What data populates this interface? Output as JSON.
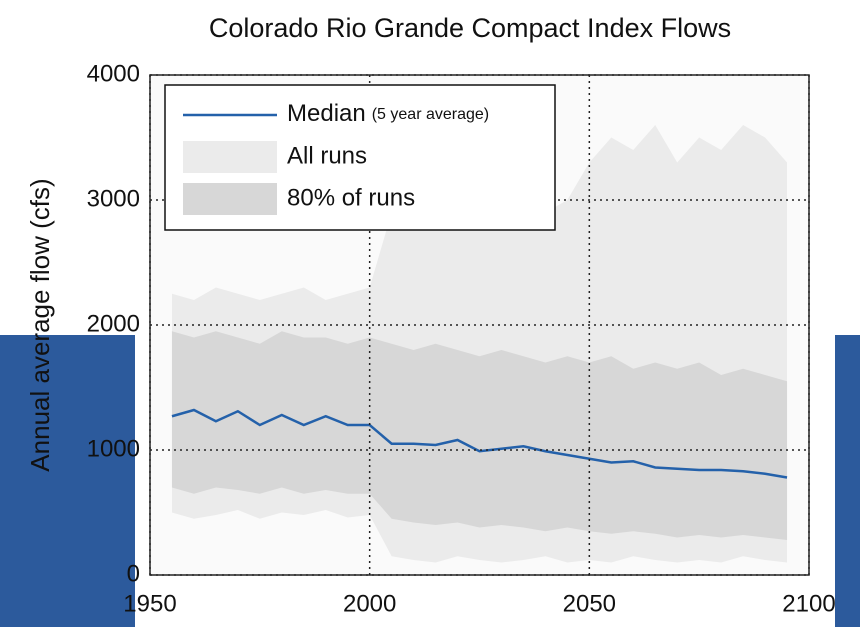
{
  "chart_data": {
    "type": "band-line",
    "title": "Colorado Rio Grande Compact Index Flows",
    "ylabel": "Annual average flow (cfs)",
    "x": [
      1955,
      1960,
      1965,
      1970,
      1975,
      1980,
      1985,
      1990,
      1995,
      2000,
      2005,
      2010,
      2015,
      2020,
      2025,
      2030,
      2035,
      2040,
      2045,
      2050,
      2055,
      2060,
      2065,
      2070,
      2075,
      2080,
      2085,
      2090,
      2095
    ],
    "series": [
      {
        "name": "Median",
        "note": "(5 year average)",
        "color": "#2461aa",
        "values": [
          1270,
          1320,
          1230,
          1310,
          1200,
          1280,
          1200,
          1270,
          1200,
          1200,
          1050,
          1050,
          1040,
          1080,
          990,
          1010,
          1030,
          990,
          960,
          930,
          900,
          910,
          860,
          850,
          840,
          840,
          830,
          810,
          780
        ]
      }
    ],
    "bands": [
      {
        "name": "All runs",
        "color": "#ebebeb",
        "upper": [
          2250,
          2200,
          2300,
          2250,
          2200,
          2250,
          2300,
          2200,
          2250,
          2300,
          2900,
          2800,
          3000,
          2900,
          3000,
          3100,
          3200,
          2900,
          3000,
          3300,
          3500,
          3400,
          3600,
          3300,
          3500,
          3400,
          3600,
          3500,
          3300
        ],
        "lower": [
          500,
          450,
          480,
          520,
          450,
          500,
          480,
          520,
          460,
          480,
          150,
          120,
          100,
          150,
          120,
          100,
          120,
          150,
          100,
          120,
          100,
          150,
          120,
          100,
          120,
          100,
          150,
          120,
          100
        ]
      },
      {
        "name": "80% of runs",
        "color": "#d7d7d7",
        "upper": [
          1950,
          1900,
          1950,
          1900,
          1850,
          1950,
          1900,
          1900,
          1850,
          1900,
          1850,
          1800,
          1850,
          1800,
          1750,
          1800,
          1750,
          1700,
          1750,
          1700,
          1750,
          1650,
          1700,
          1650,
          1700,
          1600,
          1650,
          1600,
          1550
        ],
        "lower": [
          700,
          650,
          700,
          680,
          650,
          700,
          650,
          680,
          650,
          650,
          450,
          420,
          400,
          420,
          380,
          400,
          380,
          350,
          380,
          350,
          330,
          350,
          330,
          300,
          320,
          300,
          320,
          300,
          280
        ]
      }
    ],
    "xlim": [
      1950,
      2100
    ],
    "xticks": [
      1950,
      2000,
      2050,
      2100
    ],
    "ylim": [
      0,
      4000
    ],
    "yticks": [
      0,
      1000,
      2000,
      3000,
      4000
    ],
    "grid": true,
    "legend": "upper left"
  }
}
